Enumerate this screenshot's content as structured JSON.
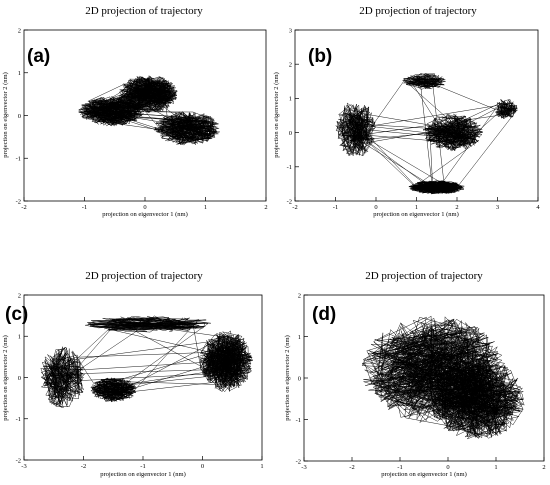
{
  "chart_data": [
    {
      "type": "line",
      "panel_label": "(a)",
      "title": "2D projection of trajectory",
      "xlabel": "projection on eigenvector 1 (nm)",
      "ylabel": "projection on eigenvector 2 (nm)",
      "xlim": [
        -2,
        2
      ],
      "ylim": [
        -2,
        2
      ],
      "xticks": [
        "-2",
        "-1",
        "0",
        "1",
        "2"
      ],
      "yticks": [
        "-2",
        "-1",
        "0",
        "1",
        "2"
      ],
      "grid": false,
      "legend": "none",
      "regions": [
        {
          "cx": -0.55,
          "cy": 0.1,
          "rx": 0.55,
          "ry": 0.35,
          "weight": 0.35
        },
        {
          "cx": 0.05,
          "cy": 0.5,
          "rx": 0.5,
          "ry": 0.45,
          "weight": 0.3
        },
        {
          "cx": 0.7,
          "cy": -0.3,
          "rx": 0.55,
          "ry": 0.4,
          "weight": 0.35
        }
      ]
    },
    {
      "type": "line",
      "panel_label": "(b)",
      "title": "2D projection of trajectory",
      "xlabel": "projection on eigenvector 1 (nm)",
      "ylabel": "projection on eigenvector 2 (nm)",
      "xlim": [
        -2,
        4
      ],
      "ylim": [
        -2,
        3
      ],
      "xticks": [
        "-2",
        "-1",
        "0",
        "1",
        "2",
        "3",
        "4"
      ],
      "yticks": [
        "-2",
        "-1",
        "0",
        "1",
        "2",
        "3"
      ],
      "grid": false,
      "legend": "none",
      "regions": [
        {
          "cx": -0.5,
          "cy": 0.1,
          "rx": 0.5,
          "ry": 0.85,
          "weight": 0.35
        },
        {
          "cx": 1.9,
          "cy": 0.0,
          "rx": 0.75,
          "ry": 0.55,
          "weight": 0.25
        },
        {
          "cx": 3.2,
          "cy": 0.7,
          "rx": 0.3,
          "ry": 0.3,
          "weight": 0.12
        },
        {
          "cx": 1.5,
          "cy": -1.6,
          "rx": 0.7,
          "ry": 0.2,
          "weight": 0.12
        },
        {
          "cx": 1.2,
          "cy": 1.5,
          "rx": 0.55,
          "ry": 0.25,
          "weight": 0.16
        }
      ]
    },
    {
      "type": "line",
      "panel_label": "(c)",
      "title": "2D projection of trajectory",
      "xlabel": "projection on eigenvector 1 (nm)",
      "ylabel": "projection on eigenvector 2 (nm)",
      "xlim": [
        -3,
        1
      ],
      "ylim": [
        -2,
        2
      ],
      "xticks": [
        "-3",
        "-2",
        "-1",
        "0",
        "1"
      ],
      "yticks": [
        "-2",
        "-1",
        "0",
        "1",
        "2"
      ],
      "grid": false,
      "legend": "none",
      "regions": [
        {
          "cx": -2.35,
          "cy": 0.0,
          "rx": 0.4,
          "ry": 0.75,
          "weight": 0.25
        },
        {
          "cx": -1.5,
          "cy": -0.3,
          "rx": 0.4,
          "ry": 0.3,
          "weight": 0.15
        },
        {
          "cx": 0.4,
          "cy": 0.4,
          "rx": 0.45,
          "ry": 0.75,
          "weight": 0.35
        },
        {
          "cx": -0.9,
          "cy": 1.3,
          "rx": 1.1,
          "ry": 0.2,
          "weight": 0.25
        }
      ]
    },
    {
      "type": "line",
      "panel_label": "(d)",
      "title": "2D projection of trajectory",
      "xlabel": "projection on eigenvector 1 (nm)",
      "ylabel": "projection on eigenvector 2 (nm)",
      "xlim": [
        -3,
        2
      ],
      "ylim": [
        -2,
        2
      ],
      "xticks": [
        "-3",
        "-2",
        "-1",
        "0",
        "1",
        "2"
      ],
      "yticks": [
        "-2",
        "-1",
        "0",
        "1",
        "2"
      ],
      "grid": false,
      "legend": "none",
      "regions": [
        {
          "cx": -0.3,
          "cy": 0.2,
          "rx": 1.5,
          "ry": 1.3,
          "weight": 0.55
        },
        {
          "cx": 0.6,
          "cy": -0.5,
          "rx": 1.0,
          "ry": 1.0,
          "weight": 0.45
        }
      ]
    }
  ]
}
